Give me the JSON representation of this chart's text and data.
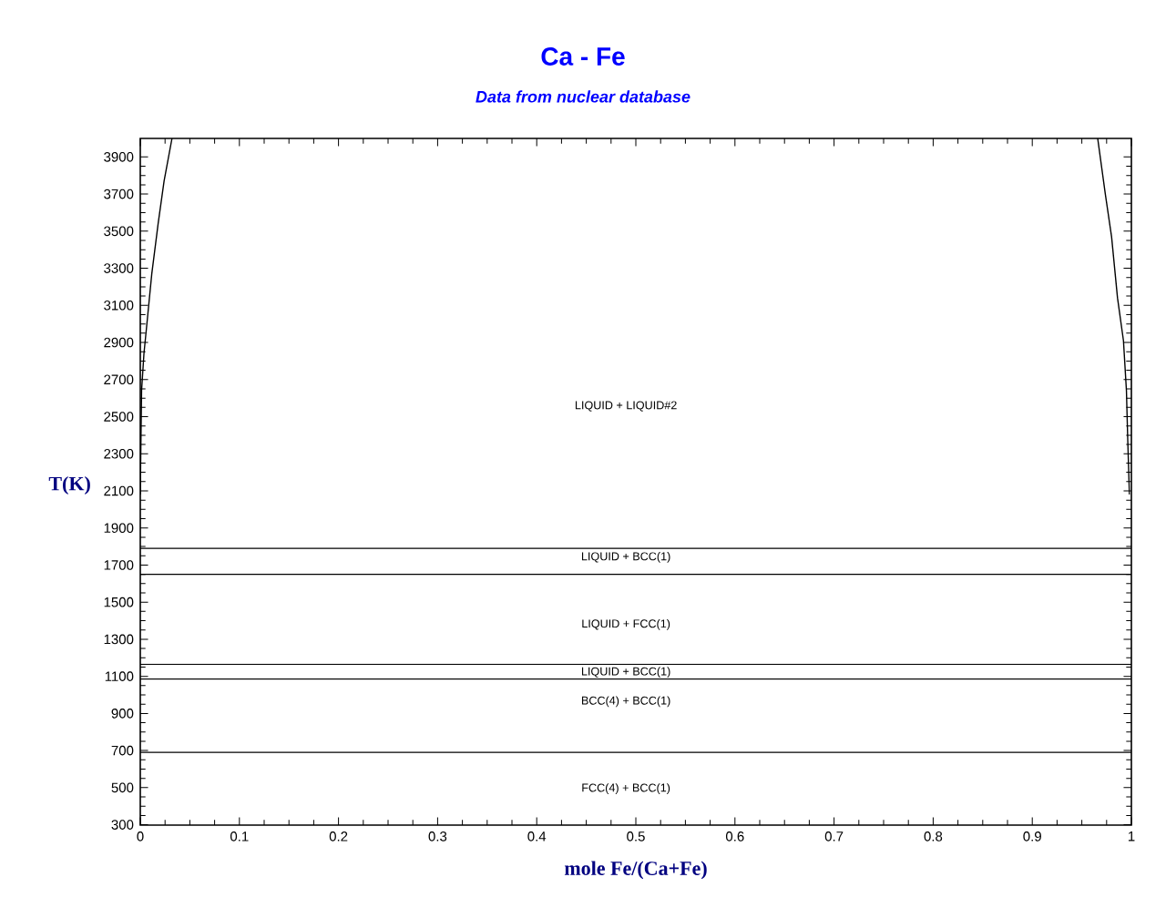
{
  "chart_data": {
    "type": "line",
    "title": "Ca - Fe",
    "subtitle": "Data from nuclear database",
    "xlabel": "mole Fe/(Ca+Fe)",
    "ylabel": "T(K)",
    "series": [
      {
        "color": "#000000",
        "x": [
          0,
          0.0013,
          0.0037,
          0.0074,
          0.0116,
          0.018,
          0.024,
          0.032
        ],
        "values": [
          2080,
          2640,
          2840,
          3040,
          3270,
          3540,
          3770,
          4000
        ]
      },
      {
        "color": "#000000",
        "x": [
          0.998,
          0.9963,
          0.995,
          0.992,
          0.986,
          0.98,
          0.9737,
          0.966
        ],
        "values": [
          2080,
          2380,
          2640,
          2910,
          3140,
          3470,
          3700,
          4000
        ]
      }
    ],
    "ref_lines": [
      {
        "axis": "y",
        "value": 1790,
        "color": "#000000"
      },
      {
        "axis": "y",
        "value": 1650,
        "color": "#000000"
      },
      {
        "axis": "y",
        "value": 1165,
        "color": "#000000"
      },
      {
        "axis": "y",
        "value": 1085,
        "color": "#000000"
      },
      {
        "axis": "y",
        "value": 690,
        "color": "#000000"
      }
    ],
    "annotations": [
      "LIQUID + LIQUID#2",
      "LIQUID + BCC(1)",
      "LIQUID + FCC(1)",
      "LIQUID + BCC(1)",
      "BCC(4) + BCC(1)",
      "FCC(4) + BCC(1)"
    ],
    "xlim": [
      0,
      1
    ],
    "ylim": [
      298,
      4000
    ],
    "xticks": [
      0,
      0.1,
      0.2,
      0.3,
      0.4,
      0.5,
      0.6,
      0.7,
      0.8,
      0.9,
      1
    ],
    "yticks": [
      300,
      500,
      700,
      900,
      1100,
      1300,
      1500,
      1700,
      1900,
      2100,
      2300,
      2500,
      2700,
      2900,
      3100,
      3300,
      3500,
      3700,
      3900
    ],
    "grid": false,
    "marker": "none",
    "line_style": "solid"
  }
}
